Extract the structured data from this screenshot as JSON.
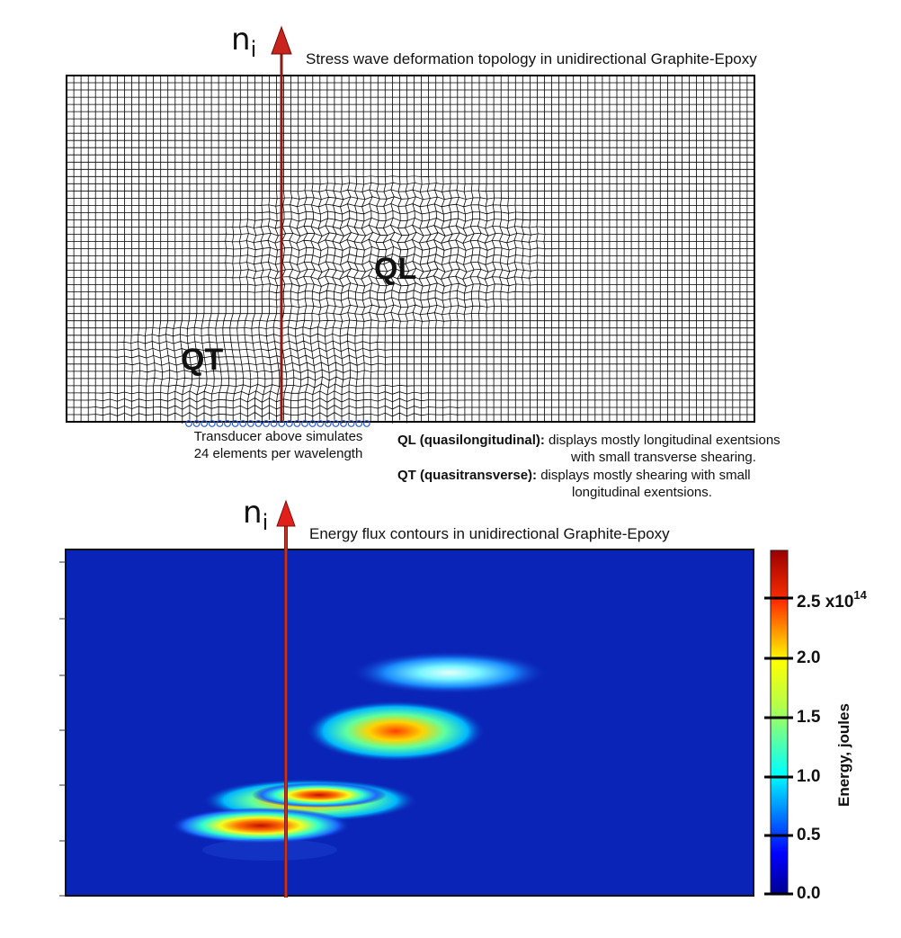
{
  "top_panel": {
    "axis_symbol": "n",
    "axis_subscript": "i",
    "title": "Stress wave deformation topology in unidirectional Graphite-Epoxy",
    "label_ql": "QL",
    "label_qt": "QT",
    "transducer_line1": "Transducer above simulates",
    "transducer_line2": "24 elements per wavelength",
    "ql_term": "QL (quasilongitudinal):",
    "ql_desc1": "displays mostly longitudinal exentsions",
    "ql_desc2": "with small transverse shearing.",
    "qt_term": "QT (quasitransverse):",
    "qt_desc1": "displays mostly shearing with small",
    "qt_desc2": "longitudinal exentsions."
  },
  "bottom_panel": {
    "axis_symbol": "n",
    "axis_subscript": "i",
    "title": "Energy flux contours in unidirectional Graphite-Epoxy",
    "colorbar": {
      "label": "Energy, joules",
      "ticks": [
        "2.5 x10",
        "2.0",
        "1.5",
        "1.0",
        "0.5",
        "0.0"
      ],
      "exponent": "14",
      "max": 2.9,
      "min": 0.0
    }
  },
  "colors": {
    "arrow": "#c8241c",
    "arrow_line": "#8a1a12",
    "field_background": "#0a24b8",
    "transducer": "#2b5fd0"
  }
}
